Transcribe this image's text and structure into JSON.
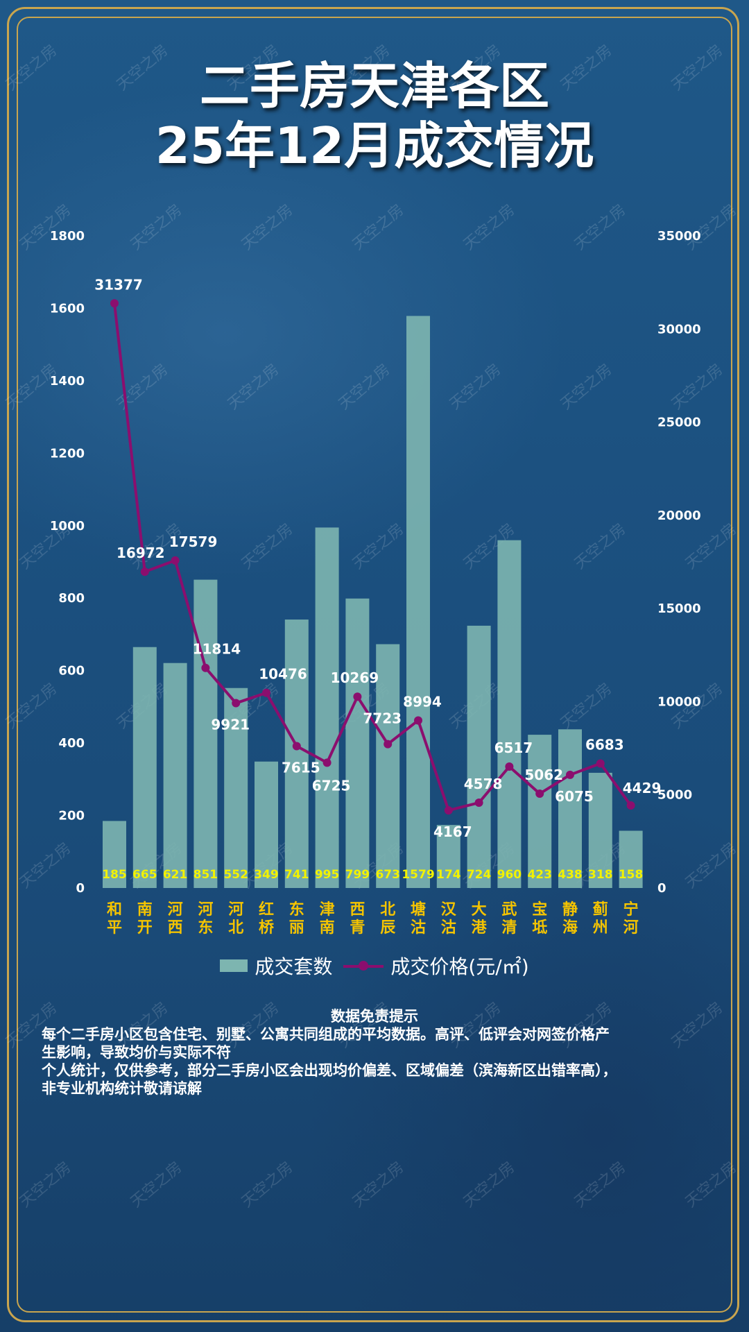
{
  "title": {
    "line1": "二手房天津各区",
    "line2": "25年12月成交情况"
  },
  "watermark": "天空之房",
  "colors": {
    "background": "#1d5283",
    "frame": "#c9a54e",
    "bar": "#7db5b0",
    "line": "#8b0e6e",
    "category_label": "#f5c400",
    "bar_value_label": "#f2f200",
    "axis_text": "#ffffff"
  },
  "chart_data": {
    "type": "bar+line",
    "categories": [
      "和平",
      "南开",
      "河西",
      "河东",
      "河北",
      "红桥",
      "东丽",
      "津南",
      "西青",
      "北辰",
      "塘沽",
      "汉沽",
      "大港",
      "武清",
      "宝坻",
      "静海",
      "蓟州",
      "宁河"
    ],
    "series": [
      {
        "name": "成交套数",
        "type": "bar",
        "axis": "left",
        "values": [
          185,
          665,
          621,
          851,
          552,
          349,
          741,
          995,
          799,
          673,
          1579,
          174,
          724,
          960,
          423,
          438,
          318,
          158
        ]
      },
      {
        "name": "成交价格(元/㎡)",
        "type": "line",
        "axis": "right",
        "values": [
          31377,
          16972,
          17579,
          11814,
          9921,
          10476,
          7615,
          6725,
          10269,
          7723,
          8994,
          4167,
          4578,
          6517,
          5062,
          6075,
          6683,
          4429
        ]
      }
    ],
    "left_axis": {
      "ylim": [
        0,
        1800
      ],
      "ticks": [
        "0",
        "200",
        "400",
        "600",
        "800",
        "1000",
        "1200",
        "1400",
        "1600",
        "1800"
      ]
    },
    "right_axis": {
      "ylim": [
        0,
        35000
      ],
      "ticks": [
        "0",
        "5000",
        "10000",
        "15000",
        "20000",
        "25000",
        "30000",
        "35000"
      ]
    },
    "grid": false,
    "legend_position": "bottom"
  },
  "disclaimer": {
    "title": "数据免责提示",
    "lines": [
      "每个二手房小区包含住宅、别墅、公寓共同组成的平均数据。高评、低评会对网签价格产",
      "生影响，导致均价与实际不符",
      "个人统计，仅供参考，部分二手房小区会出现均价偏差、区域偏差（滨海新区出错率高），",
      "非专业机构统计敬请谅解"
    ]
  }
}
